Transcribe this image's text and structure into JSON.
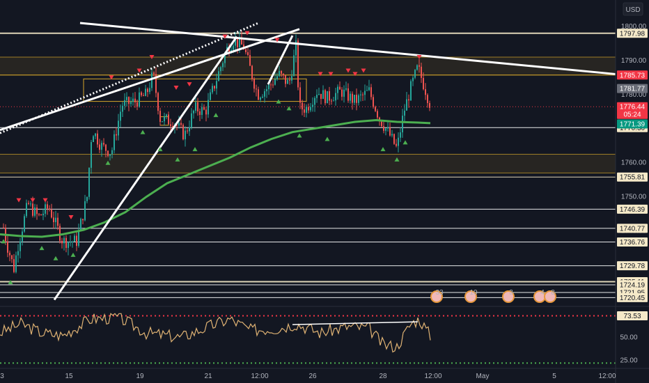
{
  "header": {
    "currency": "USD"
  },
  "chart_data": {
    "type": "candlestick",
    "symbol_currency": "USD",
    "ylim": [
      1719.5,
      1801
    ],
    "price_axis_ticks": [
      1800.0,
      1790.0,
      1780.0,
      1770.0,
      1760.0,
      1750.0,
      1740.0,
      1730.0
    ],
    "price_axis_labels": [
      "1800.00",
      "1790.00",
      "1780.00",
      "1770.00",
      "1760.00",
      "1750.00",
      "1740.00",
      "1730.00"
    ],
    "horizontal_levels": [
      {
        "price": 1797.98,
        "label": "1797.98",
        "color": "#f5e9c8"
      },
      {
        "price": 1785.73,
        "label": "1785.73",
        "color": "#d4a62a"
      },
      {
        "price": 1770.3,
        "label": "1770.30",
        "color": "#ffffff"
      },
      {
        "price": 1755.81,
        "label": "1755.81",
        "color": "#f5e9c8"
      },
      {
        "price": 1746.39,
        "label": "1746.39",
        "color": "#ffffff"
      },
      {
        "price": 1740.77,
        "label": "1740.77",
        "color": "#ffffff"
      },
      {
        "price": 1736.76,
        "label": "1736.76",
        "color": "#ffffff"
      },
      {
        "price": 1729.78,
        "label": "1729.78",
        "color": "#ffffff"
      },
      {
        "price": 1725.11,
        "label": "1725.11",
        "color": "#f5e9c8"
      },
      {
        "price": 1724.19,
        "label": "1724.19",
        "color": "#ffffff"
      },
      {
        "price": 1721.95,
        "label": "1721.95",
        "color": "#ffffff"
      },
      {
        "price": 1720.45,
        "label": "1720.45",
        "color": "#ffffff"
      }
    ],
    "zones": [
      {
        "from": 1785.73,
        "to": 1791.0,
        "color": "#d4a62a"
      },
      {
        "from": 1757.0,
        "to": 1762.5,
        "color": "#d4a62a"
      }
    ],
    "price_tags": [
      {
        "price": 1785.73,
        "label": "1785.73",
        "bg": "#f23645",
        "fg": "#ffffff"
      },
      {
        "price": 1781.77,
        "label": "1781.77",
        "bg": "#6a6d78",
        "fg": "#ffffff"
      },
      {
        "price": 1776.44,
        "label": "1776.44",
        "sub": "05:24",
        "bg": "#f23645",
        "fg": "#ffffff"
      },
      {
        "price": 1771.39,
        "label": "1771.39",
        "bg": "#089981",
        "fg": "#ffffff"
      }
    ],
    "last_price": 1776.44,
    "countdown": "05:24",
    "moving_average": {
      "color": "#4caf50",
      "value": 1771.39
    },
    "x_axis_labels": [
      "3",
      "15",
      "19",
      "21",
      "12:00",
      "26",
      "28",
      "12:00",
      "May",
      "5",
      "12:00"
    ],
    "events": [
      {
        "label": "33"
      },
      {
        "label": "10"
      },
      {
        "label": "3"
      },
      {
        "label": "4"
      },
      {
        "label": "8"
      }
    ],
    "oscillator": {
      "type": "rsi",
      "ylim": [
        20,
        80
      ],
      "levels": [
        {
          "value": 73.53,
          "label": "73.53",
          "color": "#f23645"
        },
        {
          "value": 22,
          "color": "#4caf50"
        }
      ],
      "tick_labels": [
        {
          "value": 50,
          "label": "50.00"
        },
        {
          "value": 25,
          "label": "25.00"
        }
      ],
      "color": "#e0b374"
    },
    "colors": {
      "background": "#131722",
      "up": "#26a69a",
      "down": "#ef5350",
      "grid": "#2a2e39"
    }
  }
}
